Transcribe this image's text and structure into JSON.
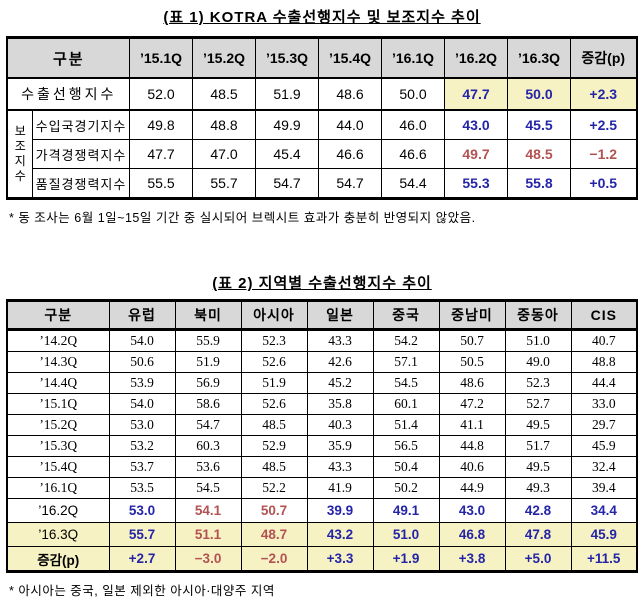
{
  "colors": {
    "accent_blue": "#2424a8",
    "accent_red": "#b25252",
    "highlight_yellow": "#f6f2c3",
    "header_gray": "#d8d8d8"
  },
  "table1": {
    "title": "(표 1) KOTRA 수출선행지수 및 보조지수 추이",
    "corner_label": "구분",
    "columns": [
      "’15.1Q",
      "’15.2Q",
      "’15.3Q",
      "’15.4Q",
      "’16.1Q",
      "’16.2Q",
      "’16.3Q",
      "증감(p)"
    ],
    "group_label": "보조지수",
    "rows": [
      {
        "label": "수출선행지수",
        "values": [
          "52.0",
          "48.5",
          "51.9",
          "48.6",
          "50.0",
          "47.7",
          "50.0",
          "+2.3"
        ],
        "value_colors": [
          "",
          "",
          "",
          "",
          "",
          "blue",
          "blue",
          "blue"
        ],
        "cell_bg": [
          "",
          "",
          "",
          "",
          "",
          "yellow",
          "yellow",
          "yellow"
        ]
      },
      {
        "label": "수입국경기지수",
        "values": [
          "49.8",
          "48.8",
          "49.9",
          "44.0",
          "46.0",
          "43.0",
          "45.5",
          "+2.5"
        ],
        "value_colors": [
          "",
          "",
          "",
          "",
          "",
          "blue",
          "blue",
          "blue"
        ]
      },
      {
        "label": "가격경쟁력지수",
        "values": [
          "47.7",
          "47.0",
          "45.4",
          "46.6",
          "46.6",
          "49.7",
          "48.5",
          "−1.2"
        ],
        "value_colors": [
          "",
          "",
          "",
          "",
          "",
          "red",
          "red",
          "red"
        ]
      },
      {
        "label": "품질경쟁력지수",
        "values": [
          "55.5",
          "55.7",
          "54.7",
          "54.7",
          "54.4",
          "55.3",
          "55.8",
          "+0.5"
        ],
        "value_colors": [
          "",
          "",
          "",
          "",
          "",
          "blue",
          "blue",
          "blue"
        ]
      }
    ],
    "footnote": "* 동 조사는 6월 1일~15일 기간 중 실시되어 브렉시트 효과가 충분히 반영되지 않았음."
  },
  "table2": {
    "title": "(표 2) 지역별 수출선행지수 추이",
    "corner_label": "구분",
    "columns": [
      "유럽",
      "북미",
      "아시아",
      "일본",
      "중국",
      "중남미",
      "중동아",
      "CIS"
    ],
    "rows": [
      {
        "label": "’14.2Q",
        "values": [
          "54.0",
          "55.9",
          "52.3",
          "43.3",
          "54.2",
          "50.7",
          "51.0",
          "40.7"
        ]
      },
      {
        "label": "’14.3Q",
        "values": [
          "50.6",
          "51.9",
          "52.6",
          "42.6",
          "57.1",
          "50.5",
          "49.0",
          "48.8"
        ]
      },
      {
        "label": "’14.4Q",
        "values": [
          "53.9",
          "56.9",
          "51.9",
          "45.2",
          "54.5",
          "48.6",
          "52.3",
          "44.4"
        ]
      },
      {
        "label": "’15.1Q",
        "values": [
          "54.0",
          "58.6",
          "52.6",
          "35.8",
          "60.1",
          "47.2",
          "52.7",
          "33.0"
        ]
      },
      {
        "label": "’15.2Q",
        "values": [
          "53.0",
          "54.7",
          "48.5",
          "40.3",
          "51.4",
          "41.1",
          "49.5",
          "29.7"
        ]
      },
      {
        "label": "’15.3Q",
        "values": [
          "53.2",
          "60.3",
          "52.9",
          "35.9",
          "56.5",
          "44.8",
          "51.7",
          "45.9"
        ]
      },
      {
        "label": "’15.4Q",
        "values": [
          "53.7",
          "53.6",
          "48.5",
          "43.3",
          "50.4",
          "40.6",
          "49.5",
          "32.4"
        ]
      },
      {
        "label": "’16.1Q",
        "values": [
          "53.5",
          "54.5",
          "52.2",
          "41.9",
          "50.2",
          "44.9",
          "49.3",
          "39.4"
        ]
      },
      {
        "label": "’16.2Q",
        "values": [
          "53.0",
          "54.1",
          "50.7",
          "39.9",
          "49.1",
          "43.0",
          "42.8",
          "34.4"
        ],
        "value_colors": [
          "blue",
          "red",
          "red",
          "blue",
          "blue",
          "blue",
          "blue",
          "blue"
        ],
        "bold": true
      },
      {
        "label": "’16.3Q",
        "values": [
          "55.7",
          "51.1",
          "48.7",
          "43.2",
          "51.0",
          "46.8",
          "47.8",
          "45.9"
        ],
        "value_colors": [
          "blue",
          "red",
          "red",
          "blue",
          "blue",
          "blue",
          "blue",
          "blue"
        ],
        "bold": true,
        "row_bg": "yellow"
      },
      {
        "label": "증감(p)",
        "values": [
          "+2.7",
          "−3.0",
          "−2.0",
          "+3.3",
          "+1.9",
          "+3.8",
          "+5.0",
          "+11.5"
        ],
        "value_colors": [
          "blue",
          "red",
          "red",
          "blue",
          "blue",
          "blue",
          "blue",
          "blue"
        ],
        "bold": true,
        "row_bg": "yellow",
        "label_bold": true
      }
    ],
    "footnote": "* 아시아는 중국, 일본 제외한 아시아·대양주 지역"
  }
}
